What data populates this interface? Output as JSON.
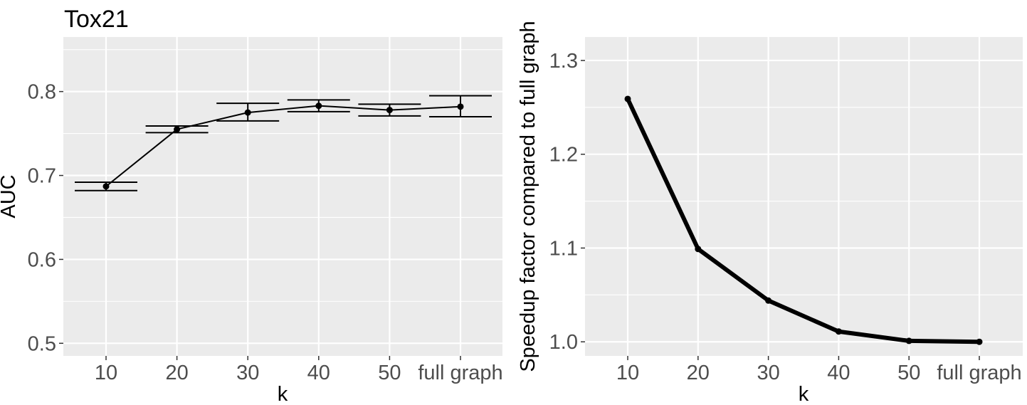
{
  "chart_data": [
    {
      "type": "line",
      "title": "Tox21",
      "xlabel": "k",
      "ylabel": "AUC",
      "categories": [
        "10",
        "20",
        "30",
        "40",
        "50",
        "full graph"
      ],
      "values": [
        0.687,
        0.755,
        0.775,
        0.783,
        0.778,
        0.782
      ],
      "error_low": [
        0.682,
        0.751,
        0.765,
        0.776,
        0.771,
        0.77
      ],
      "error_high": [
        0.692,
        0.759,
        0.786,
        0.79,
        0.785,
        0.795
      ],
      "ylim": [
        0.485,
        0.865
      ],
      "yticks": [
        0.5,
        0.6,
        0.7,
        0.8
      ],
      "ytick_labels": [
        "0.5",
        "0.6",
        "0.7",
        "0.8"
      ],
      "grid": true,
      "error_bars": true,
      "line_color": "#000000",
      "panel_color": "#ebebeb"
    },
    {
      "type": "line",
      "title": "",
      "xlabel": "k",
      "ylabel": "Speedup factor compared to full graph",
      "categories": [
        "10",
        "20",
        "30",
        "40",
        "50",
        "full graph"
      ],
      "values": [
        1.259,
        1.099,
        1.044,
        1.011,
        1.001,
        1.0
      ],
      "ylim": [
        0.985,
        1.325
      ],
      "yticks": [
        1.0,
        1.1,
        1.2,
        1.3
      ],
      "ytick_labels": [
        "1.0",
        "1.1",
        "1.2",
        "1.3"
      ],
      "grid": true,
      "line_color": "#000000",
      "panel_color": "#ebebeb"
    }
  ]
}
